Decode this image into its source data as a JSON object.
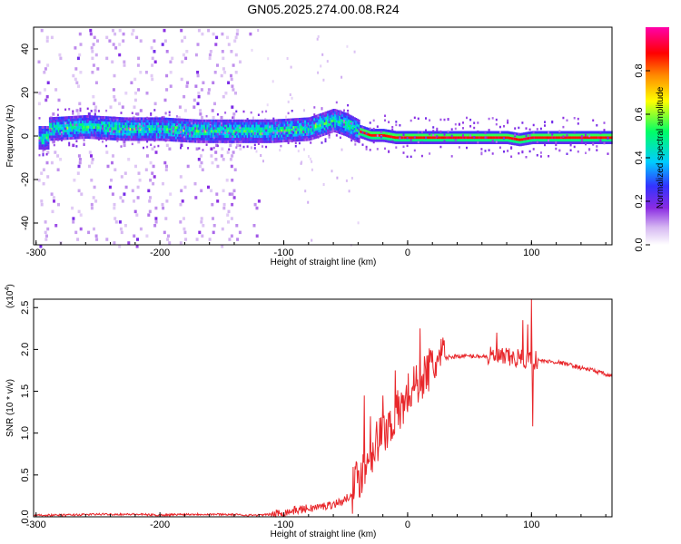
{
  "figure": {
    "title": "GN05.2025.274.00.08.R24"
  },
  "chart_data": [
    {
      "type": "heatmap",
      "xlabel": "Height of straight line (km)",
      "ylabel": "Frequency (Hz)",
      "xlim": [
        -302,
        165
      ],
      "ylim": [
        -50,
        50
      ],
      "xticks": [
        "-300",
        "-200",
        "-100",
        "0",
        "100"
      ],
      "yticks": [
        "-40",
        "-20",
        "0",
        "20",
        "40"
      ],
      "colorbar": {
        "label": "Normalized spectral amplitude",
        "range": [
          0,
          1
        ],
        "ticks": [
          "0.0",
          "0.2",
          "0.4",
          "0.6",
          "0.8"
        ],
        "colors": [
          "#ffffff",
          "#d6b8f2",
          "#8a2be2",
          "#3333ff",
          "#00ccff",
          "#00ff66",
          "#ffff00",
          "#ff8800",
          "#ff0000",
          "#ff00aa"
        ]
      },
      "ridge": {
        "description_points_x": [
          -290,
          -260,
          -230,
          -200,
          -170,
          -140,
          -110,
          -80,
          -60,
          -50,
          -40,
          -30,
          -20,
          -10,
          0,
          20,
          50,
          80,
          90,
          100,
          130,
          165
        ],
        "description_points_y": [
          4,
          5,
          4,
          4,
          3,
          3,
          3,
          4,
          8,
          6,
          3,
          1,
          1,
          0,
          0,
          0,
          0,
          0,
          -1,
          0,
          0,
          0
        ],
        "peak_amplitude_x": [
          -90,
          -40,
          10,
          30,
          50,
          100,
          150
        ],
        "noise_region_x": [
          -302,
          -130
        ]
      }
    },
    {
      "type": "line",
      "xlabel": "Height of straight line (km)",
      "ylabel": "SNR (10 * v/v)",
      "y_scale_label": "(x10",
      "y_scale_exp": "4",
      "y_scale_close": ")",
      "xlim": [
        -302,
        165
      ],
      "ylim": [
        0,
        2.6
      ],
      "xticks": [
        "-300",
        "-200",
        "-100",
        "0",
        "100"
      ],
      "yticks": [
        "0.0",
        "0.5",
        "1.0",
        "1.5",
        "2.0",
        "2.5"
      ],
      "series": [
        {
          "color": "#e8262a",
          "x": [
            -302,
            -280,
            -250,
            -220,
            -200,
            -180,
            -150,
            -130,
            -120,
            -110,
            -100,
            -90,
            -80,
            -70,
            -60,
            -50,
            -45,
            -40,
            -35,
            -30,
            -25,
            -20,
            -15,
            -10,
            -5,
            0,
            5,
            10,
            15,
            20,
            25,
            30,
            40,
            50,
            60,
            70,
            75,
            80,
            85,
            90,
            95,
            100,
            105,
            110,
            120,
            130,
            140,
            150,
            160,
            165
          ],
          "y": [
            0.02,
            0.02,
            0.03,
            0.03,
            0.02,
            0.03,
            0.03,
            0.02,
            0.02,
            0.03,
            0.05,
            0.08,
            0.1,
            0.12,
            0.15,
            0.2,
            0.3,
            0.45,
            0.6,
            0.75,
            0.9,
            1.0,
            1.1,
            1.2,
            1.3,
            1.45,
            1.55,
            1.65,
            1.72,
            1.8,
            1.85,
            1.9,
            1.92,
            1.92,
            1.92,
            1.91,
            1.9,
            1.9,
            1.89,
            1.9,
            1.88,
            1.88,
            1.87,
            1.86,
            1.85,
            1.82,
            1.78,
            1.75,
            1.7,
            1.67
          ],
          "spikes": [
            {
              "x": -40,
              "y": 0.55
            },
            {
              "x": -35,
              "y": 1.45
            },
            {
              "x": -30,
              "y": 1.2
            },
            {
              "x": -20,
              "y": 1.45
            },
            {
              "x": -10,
              "y": 1.75
            },
            {
              "x": 10,
              "y": 2.25
            },
            {
              "x": 72,
              "y": 2.2
            },
            {
              "x": 93,
              "y": 2.35
            },
            {
              "x": 97,
              "y": 2.3
            },
            {
              "x": 100,
              "y": 2.6
            },
            {
              "x": 101,
              "y": 1.08
            }
          ]
        }
      ]
    }
  ]
}
